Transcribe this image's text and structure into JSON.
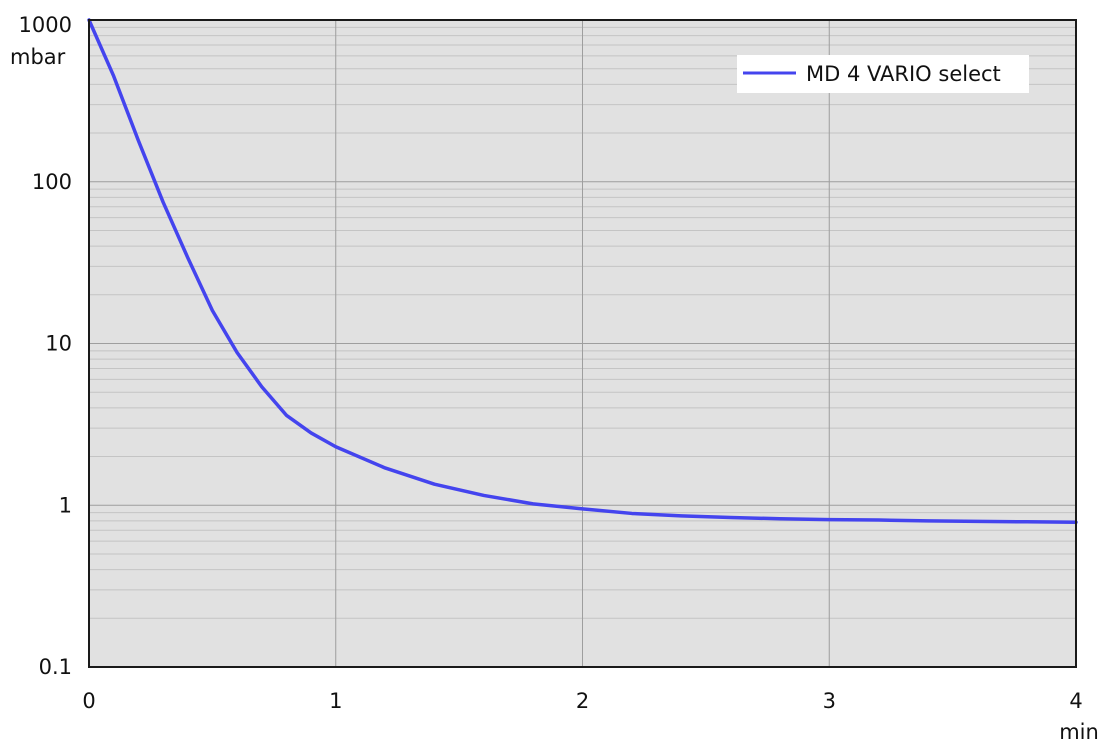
{
  "chart_data": {
    "type": "line",
    "title": "",
    "xlabel": "min",
    "ylabel": "mbar",
    "x_scale": "linear",
    "y_scale": "log",
    "xlim": [
      0,
      4
    ],
    "ylim": [
      0.1,
      1000
    ],
    "x_ticks": [
      0,
      1,
      2,
      3,
      4
    ],
    "x_tick_labels": [
      "0",
      "1",
      "2",
      "3",
      "4"
    ],
    "y_ticks": [
      0.1,
      1,
      10,
      100,
      1000
    ],
    "y_tick_labels": [
      "0.1",
      "1",
      "10",
      "100",
      "1000"
    ],
    "grid": true,
    "plot_background": "#e1e1e1",
    "legend": {
      "position": "top-right"
    },
    "series": [
      {
        "name": "MD 4 VARIO select",
        "color": "#4444ee",
        "x": [
          0,
          0.1,
          0.2,
          0.3,
          0.4,
          0.5,
          0.6,
          0.7,
          0.8,
          0.9,
          1.0,
          1.2,
          1.4,
          1.6,
          1.8,
          2.0,
          2.2,
          2.4,
          2.6,
          2.8,
          3.0,
          3.2,
          3.4,
          3.6,
          3.8,
          4.0
        ],
        "y": [
          1000,
          450,
          180,
          75,
          34,
          16,
          8.8,
          5.4,
          3.6,
          2.8,
          2.3,
          1.7,
          1.35,
          1.15,
          1.02,
          0.95,
          0.89,
          0.86,
          0.84,
          0.825,
          0.815,
          0.81,
          0.8,
          0.795,
          0.79,
          0.785
        ]
      }
    ]
  }
}
